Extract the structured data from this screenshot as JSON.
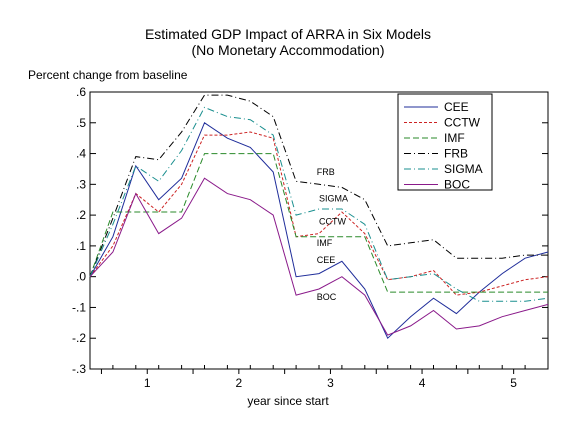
{
  "chart_data": {
    "type": "line",
    "title": "Estimated GDP Impact of ARRA in Six Models",
    "subtitle": "(No Monetary Accommodation)",
    "ylabel": "Percent change from baseline",
    "xlabel": "year since start",
    "ylim": [
      -0.3,
      0.6
    ],
    "y_ticks": [
      ".6",
      ".5",
      ".4",
      ".3",
      ".2",
      ".1",
      ".0",
      "-.1",
      "-.2",
      "-.3"
    ],
    "x_range": [
      0,
      20
    ],
    "x_tick_labels": [
      {
        "x": 2.5,
        "label": "1"
      },
      {
        "x": 6.5,
        "label": "2"
      },
      {
        "x": 10.5,
        "label": "3"
      },
      {
        "x": 14.5,
        "label": "4"
      },
      {
        "x": 18.5,
        "label": "5"
      }
    ],
    "x": [
      0,
      1,
      2,
      3,
      4,
      5,
      6,
      7,
      8,
      9,
      10,
      11,
      12,
      13,
      14,
      15,
      16,
      17,
      18,
      19,
      20
    ],
    "series": [
      {
        "name": "CEE",
        "color": "#1f2d9a",
        "dash": "",
        "values": [
          0.0,
          0.13,
          0.36,
          0.25,
          0.32,
          0.5,
          0.45,
          0.42,
          0.34,
          0.0,
          0.01,
          0.05,
          -0.04,
          -0.2,
          -0.13,
          -0.07,
          -0.12,
          -0.05,
          0.01,
          0.06,
          0.08
        ]
      },
      {
        "name": "CCTW",
        "color": "#cc2222",
        "dash": "3,2",
        "values": [
          0.0,
          0.1,
          0.27,
          0.21,
          0.3,
          0.46,
          0.46,
          0.47,
          0.45,
          0.13,
          0.14,
          0.21,
          0.14,
          -0.01,
          0.0,
          0.02,
          -0.06,
          -0.05,
          -0.03,
          -0.01,
          0.0
        ]
      },
      {
        "name": "IMF",
        "color": "#2a8a2a",
        "dash": "6,3",
        "values": [
          0.0,
          0.21,
          0.21,
          0.21,
          0.21,
          0.4,
          0.4,
          0.4,
          0.4,
          0.13,
          0.13,
          0.13,
          0.13,
          -0.05,
          -0.05,
          -0.05,
          -0.05,
          -0.05,
          -0.05,
          -0.05,
          -0.05
        ]
      },
      {
        "name": "FRB",
        "color": "#000000",
        "dash": "7,3,1,3",
        "values": [
          0.0,
          0.19,
          0.39,
          0.38,
          0.47,
          0.59,
          0.59,
          0.57,
          0.52,
          0.31,
          0.3,
          0.29,
          0.25,
          0.1,
          0.11,
          0.12,
          0.06,
          0.06,
          0.06,
          0.07,
          0.07
        ]
      },
      {
        "name": "SIGMA",
        "color": "#1a8f8f",
        "dash": "7,3,1,3",
        "values": [
          0.0,
          0.17,
          0.36,
          0.31,
          0.41,
          0.55,
          0.52,
          0.51,
          0.46,
          0.2,
          0.22,
          0.22,
          0.17,
          -0.01,
          0.0,
          0.01,
          -0.04,
          -0.08,
          -0.08,
          -0.08,
          -0.07
        ]
      },
      {
        "name": "BOC",
        "color": "#8a1a8a",
        "dash": "",
        "values": [
          0.0,
          0.08,
          0.27,
          0.14,
          0.19,
          0.32,
          0.27,
          0.25,
          0.2,
          -0.06,
          -0.04,
          0.0,
          -0.06,
          -0.19,
          -0.16,
          -0.11,
          -0.17,
          -0.16,
          -0.13,
          -0.11,
          -0.09
        ]
      }
    ],
    "annotations": [
      {
        "text": "FRB",
        "x": 9.9,
        "y": 0.33
      },
      {
        "text": "SIGMA",
        "x": 10.0,
        "y": 0.245
      },
      {
        "text": "CCTW",
        "x": 10.0,
        "y": 0.17
      },
      {
        "text": "IMF",
        "x": 9.9,
        "y": 0.1
      },
      {
        "text": "CEE",
        "x": 9.9,
        "y": 0.045
      },
      {
        "text": "BOC",
        "x": 9.9,
        "y": -0.075
      }
    ],
    "legend_position": "top-right",
    "grid": false
  }
}
